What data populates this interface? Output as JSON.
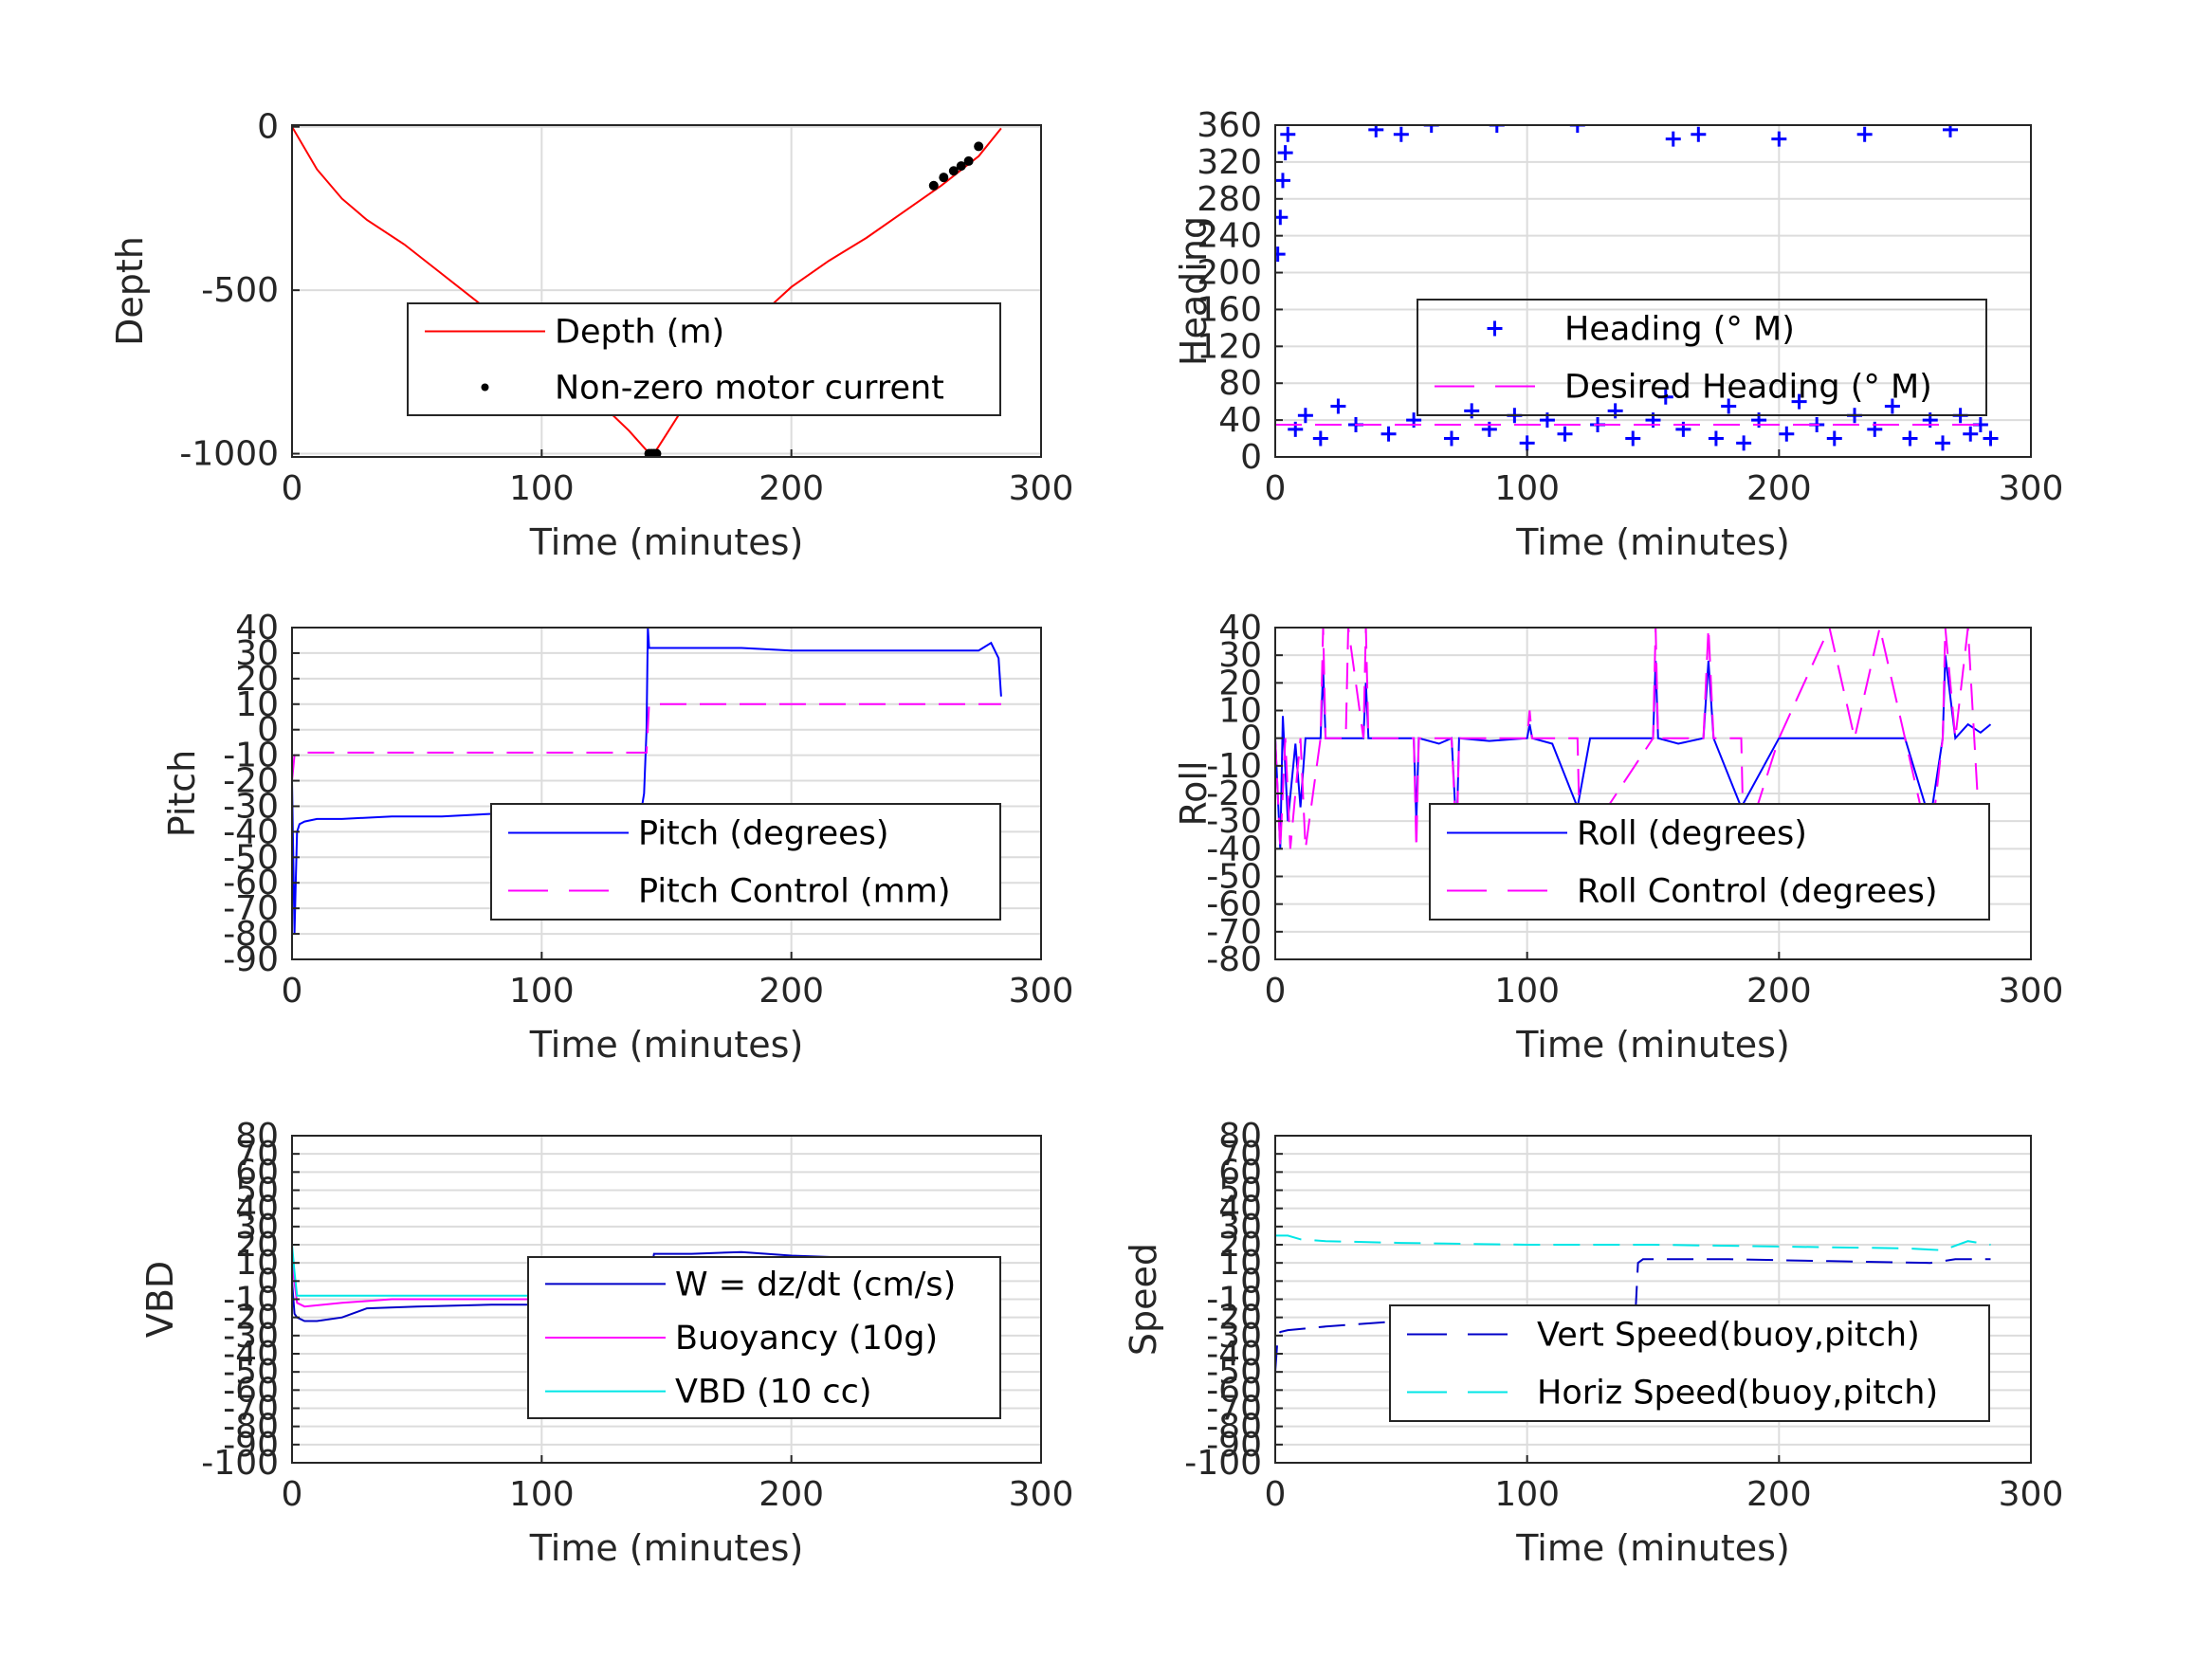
{
  "figure": {
    "background": "#ffffff",
    "grid_color": "#dcdcdc",
    "axis_color": "#262626"
  },
  "chart_data": [
    {
      "type": "line",
      "ylabel": "Depth",
      "xlabel": "Time (minutes)",
      "xlim": [
        0,
        300
      ],
      "ylim": [
        -1010,
        5
      ],
      "xticks": [
        0,
        100,
        200,
        300
      ],
      "yticks": [
        -1000,
        -500,
        0
      ],
      "grid": true,
      "legend_position": "center-right",
      "series": [
        {
          "name": "Depth (m)",
          "style": "line",
          "color": "#ff0000",
          "x": [
            0,
            10,
            20,
            30,
            45,
            60,
            80,
            100,
            120,
            135,
            142,
            145,
            150,
            160,
            175,
            190,
            200,
            215,
            230,
            245,
            260,
            275,
            284
          ],
          "y": [
            0,
            -130,
            -220,
            -285,
            -360,
            -450,
            -570,
            -690,
            -820,
            -930,
            -990,
            -1000,
            -940,
            -820,
            -680,
            -560,
            -490,
            -410,
            -340,
            -260,
            -180,
            -90,
            -5
          ]
        },
        {
          "name": "Non-zero motor current",
          "style": "dot",
          "color": "#000000",
          "x": [
            143,
            144,
            145,
            146,
            257,
            261,
            265,
            268,
            271,
            275
          ],
          "y": [
            -1000,
            -1000,
            -1000,
            -1000,
            -180,
            -155,
            -135,
            -120,
            -105,
            -60
          ]
        }
      ]
    },
    {
      "type": "scatter",
      "ylabel": "Heading",
      "xlabel": "Time (minutes)",
      "xlim": [
        0,
        300
      ],
      "ylim": [
        0,
        360
      ],
      "xticks": [
        0,
        100,
        200,
        300
      ],
      "yticks": [
        0,
        40,
        80,
        120,
        160,
        200,
        240,
        280,
        320,
        360
      ],
      "grid": true,
      "legend_position": "center-right",
      "series": [
        {
          "name": "Heading (° M)",
          "style": "plus",
          "color": "#0000ff",
          "x": [
            1,
            2,
            3,
            4,
            5,
            8,
            12,
            18,
            25,
            32,
            40,
            45,
            50,
            55,
            62,
            70,
            78,
            85,
            88,
            95,
            100,
            108,
            115,
            120,
            128,
            135,
            142,
            150,
            155,
            158,
            162,
            168,
            175,
            180,
            186,
            192,
            200,
            203,
            208,
            215,
            222,
            230,
            234,
            238,
            245,
            252,
            260,
            265,
            268,
            272,
            276,
            280,
            284
          ],
          "y": [
            220,
            260,
            300,
            330,
            350,
            30,
            45,
            20,
            55,
            35,
            355,
            25,
            350,
            40,
            360,
            20,
            50,
            30,
            360,
            45,
            15,
            40,
            25,
            360,
            35,
            50,
            20,
            40,
            65,
            345,
            30,
            350,
            20,
            55,
            15,
            40,
            345,
            25,
            60,
            35,
            20,
            45,
            350,
            30,
            55,
            20,
            40,
            15,
            355,
            45,
            25,
            35,
            20
          ]
        },
        {
          "name": "Desired Heading (° M)",
          "style": "dash",
          "color": "#ff00ff",
          "x": [
            0,
            284
          ],
          "y": [
            35,
            35
          ]
        }
      ]
    },
    {
      "type": "line",
      "ylabel": "Pitch",
      "xlabel": "Time (minutes)",
      "xlim": [
        0,
        300
      ],
      "ylim": [
        -90,
        40
      ],
      "xticks": [
        0,
        100,
        200,
        300
      ],
      "yticks": [
        -90,
        -80,
        -70,
        -60,
        -50,
        -40,
        -30,
        -20,
        -10,
        0,
        10,
        20,
        30,
        40
      ],
      "grid": true,
      "legend_position": "lower-right",
      "series": [
        {
          "name": "Pitch (degrees)",
          "style": "line",
          "color": "#0000ff",
          "x": [
            0,
            1,
            1.5,
            2,
            3,
            5,
            10,
            20,
            40,
            60,
            80,
            100,
            120,
            140,
            141,
            142,
            142.5,
            143,
            145,
            160,
            180,
            200,
            220,
            240,
            260,
            275,
            280,
            283,
            284
          ],
          "y": [
            -20,
            -80,
            -60,
            -40,
            -37,
            -36,
            -35,
            -35,
            -34,
            -34,
            -33,
            -33,
            -32,
            -31,
            -25,
            0,
            40,
            32,
            32,
            32,
            32,
            31,
            31,
            31,
            31,
            31,
            34,
            28,
            13
          ]
        },
        {
          "name": "Pitch Control (mm)",
          "style": "dash",
          "color": "#ff00ff",
          "x": [
            0,
            1,
            2,
            142,
            143,
            284
          ],
          "y": [
            -20,
            -10,
            -9,
            -9,
            10,
            10
          ]
        }
      ]
    },
    {
      "type": "line",
      "ylabel": "Roll",
      "xlabel": "Time (minutes)",
      "xlim": [
        0,
        300
      ],
      "ylim": [
        -80,
        40
      ],
      "xticks": [
        0,
        100,
        200,
        300
      ],
      "yticks": [
        -80,
        -70,
        -60,
        -50,
        -40,
        -30,
        -20,
        -10,
        0,
        10,
        20,
        30,
        40
      ],
      "grid": true,
      "legend_position": "lower-right",
      "series": [
        {
          "name": "Roll (degrees)",
          "style": "line",
          "color": "#0000ff",
          "x": [
            0,
            2,
            3,
            5,
            8,
            10,
            12,
            18,
            19,
            20,
            28,
            35,
            36,
            37,
            50,
            55,
            56,
            57,
            65,
            70,
            72,
            73,
            85,
            100,
            101,
            102,
            110,
            120,
            125,
            140,
            150,
            151,
            152,
            160,
            170,
            172,
            174,
            185,
            200,
            210,
            220,
            230,
            240,
            250,
            260,
            265,
            266,
            270,
            275,
            280,
            284
          ],
          "y": [
            0,
            -40,
            8,
            -30,
            -2,
            -25,
            0,
            0,
            25,
            0,
            0,
            0,
            20,
            0,
            0,
            0,
            -30,
            0,
            -2,
            0,
            -35,
            0,
            -1,
            0,
            5,
            0,
            -2,
            -25,
            0,
            0,
            0,
            28,
            0,
            -2,
            0,
            28,
            0,
            -25,
            0,
            0,
            0,
            0,
            0,
            0,
            -30,
            0,
            30,
            0,
            5,
            2,
            5
          ]
        },
        {
          "name": "Roll Control (degrees)",
          "style": "dash",
          "color": "#ff00ff",
          "x": [
            0,
            2,
            4,
            6,
            10,
            12,
            18,
            19,
            20,
            28,
            29,
            35,
            36,
            37,
            50,
            55,
            56,
            57,
            70,
            72,
            73,
            100,
            101,
            102,
            120,
            121,
            150,
            151,
            152,
            170,
            172,
            174,
            185,
            186,
            200,
            220,
            230,
            240,
            250,
            260,
            265,
            266,
            270,
            275,
            280
          ],
          "y": [
            0,
            -40,
            0,
            -40,
            0,
            -40,
            0,
            40,
            0,
            0,
            40,
            0,
            40,
            0,
            0,
            0,
            -40,
            0,
            0,
            -40,
            0,
            0,
            10,
            0,
            0,
            -40,
            0,
            40,
            0,
            0,
            40,
            0,
            0,
            -40,
            0,
            40,
            0,
            40,
            0,
            -40,
            0,
            40,
            0,
            40,
            -40
          ]
        }
      ]
    },
    {
      "type": "line",
      "ylabel": "VBD",
      "xlabel": "Time (minutes)",
      "xlim": [
        0,
        300
      ],
      "ylim": [
        -100,
        80
      ],
      "xticks": [
        0,
        100,
        200,
        300
      ],
      "yticks": [
        -100,
        -90,
        -80,
        -70,
        -60,
        -50,
        -40,
        -30,
        -20,
        -10,
        0,
        10,
        20,
        30,
        40,
        50,
        60,
        70,
        80
      ],
      "grid": true,
      "legend_position": "lower-right",
      "series": [
        {
          "name": "W = dz/dt (cm/s)",
          "style": "line",
          "color": "#0000c8",
          "x": [
            0,
            1,
            2,
            5,
            10,
            20,
            30,
            50,
            80,
            100,
            130,
            140,
            142,
            143,
            145,
            160,
            180,
            200,
            220,
            240,
            260,
            270,
            284
          ],
          "y": [
            0,
            -18,
            -20,
            -22,
            -22,
            -20,
            -15,
            -14,
            -13,
            -13,
            -12,
            -12,
            -10,
            0,
            15,
            15,
            16,
            14,
            13,
            13,
            12,
            12,
            12
          ]
        },
        {
          "name": "Buoyancy (10g)",
          "style": "line",
          "color": "#ff00ff",
          "x": [
            0,
            2,
            5,
            20,
            40,
            80,
            120,
            142,
            143,
            180,
            220,
            250,
            258,
            265,
            284
          ],
          "y": [
            10,
            -12,
            -14,
            -12,
            -10,
            -10,
            -10,
            -10,
            5,
            5,
            4,
            4,
            3,
            6,
            8
          ]
        },
        {
          "name": "VBD (10 cc)",
          "style": "line",
          "color": "#00e6e6",
          "x": [
            0,
            1,
            2,
            142,
            143,
            284
          ],
          "y": [
            20,
            5,
            -8,
            -8,
            8,
            8
          ]
        }
      ]
    },
    {
      "type": "line",
      "ylabel": "Speed",
      "xlabel": "Time (minutes)",
      "xlim": [
        0,
        300
      ],
      "ylim": [
        -100,
        80
      ],
      "xticks": [
        0,
        100,
        200,
        300
      ],
      "yticks": [
        -100,
        -90,
        -80,
        -70,
        -60,
        -50,
        -40,
        -30,
        -20,
        -10,
        0,
        10,
        20,
        30,
        40,
        50,
        60,
        70,
        80
      ],
      "grid": true,
      "legend_position": "lower-right",
      "series": [
        {
          "name": "Vert Speed(buoy,pitch)",
          "style": "dash",
          "color": "#0000c8",
          "x": [
            0,
            1,
            2,
            5,
            20,
            50,
            100,
            130,
            143,
            144,
            146,
            180,
            220,
            260,
            270,
            284
          ],
          "y": [
            -50,
            -30,
            -28,
            -27,
            -25,
            -22,
            -21,
            -20,
            -18,
            10,
            12,
            12,
            11,
            10,
            12,
            12
          ]
        },
        {
          "name": "Horiz Speed(buoy,pitch)",
          "style": "dash",
          "color": "#00e6e6",
          "x": [
            0,
            5,
            10,
            20,
            50,
            100,
            150,
            200,
            250,
            265,
            275,
            284
          ],
          "y": [
            25,
            25,
            23,
            22,
            21,
            20,
            20,
            19,
            18,
            17,
            22,
            20
          ]
        }
      ]
    }
  ]
}
